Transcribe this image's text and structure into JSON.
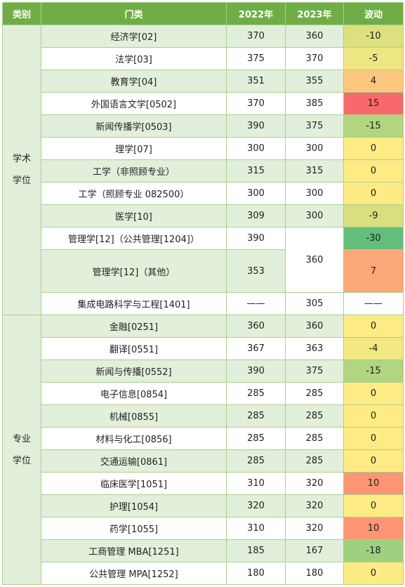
{
  "headers": {
    "category": "类别",
    "field": "门类",
    "y2022": "2022年",
    "y2023": "2023年",
    "change": "波动"
  },
  "groups": {
    "academic": [
      "学术",
      "学位"
    ],
    "professional": [
      "专业",
      "学位"
    ]
  },
  "rows": [
    {
      "field": "经济学[02]",
      "y2022": "370",
      "y2023": "360",
      "change": "-10",
      "color": "#dce07f"
    },
    {
      "field": "法学[03]",
      "y2022": "375",
      "y2023": "370",
      "change": "-5",
      "color": "#eee682"
    },
    {
      "field": "教育学[04]",
      "y2022": "351",
      "y2023": "355",
      "change": "4",
      "color": "#fdc67d"
    },
    {
      "field": "外国语言文学[0502]",
      "y2022": "370",
      "y2023": "385",
      "change": "15",
      "color": "#f8696b"
    },
    {
      "field": "新闻传播学[0503]",
      "y2022": "390",
      "y2023": "375",
      "change": "-15",
      "color": "#b1d580"
    },
    {
      "field": "理学[07]",
      "y2022": "300",
      "y2023": "300",
      "change": "0",
      "color": "#ffeb84"
    },
    {
      "field": "工学（非照顾专业）",
      "y2022": "315",
      "y2023": "315",
      "change": "0",
      "color": "#ffeb84"
    },
    {
      "field": "工学（照顾专业 082500）",
      "y2022": "300",
      "y2023": "300",
      "change": "0",
      "color": "#ffeb84"
    },
    {
      "field": "医学[10]",
      "y2022": "309",
      "y2023": "300",
      "change": "-9",
      "color": "#d8df7f"
    },
    {
      "field": "管理学[12]（公共管理[1204]）",
      "y2022": "390",
      "y2023": "360",
      "change": "-30",
      "color": "#63be7b"
    },
    {
      "field": "管理学[12]（其他）",
      "y2022": "353",
      "y2023": "",
      "change": "7",
      "color": "#fca777"
    },
    {
      "field": "集成电路科学与工程[1401]",
      "y2022": "——",
      "y2023": "305",
      "change": "——",
      "color": "#ffffff"
    },
    {
      "field": "金融[0251]",
      "y2022": "360",
      "y2023": "360",
      "change": "0",
      "color": "#ffeb84"
    },
    {
      "field": "翻译[0551]",
      "y2022": "367",
      "y2023": "363",
      "change": "-4",
      "color": "#f1e783"
    },
    {
      "field": "新闻与传播[0552]",
      "y2022": "390",
      "y2023": "375",
      "change": "-15",
      "color": "#b1d580"
    },
    {
      "field": "电子信息[0854]",
      "y2022": "285",
      "y2023": "285",
      "change": "0",
      "color": "#ffeb84"
    },
    {
      "field": "机械[0855]",
      "y2022": "285",
      "y2023": "285",
      "change": "0",
      "color": "#ffeb84"
    },
    {
      "field": "材料与化工[0856]",
      "y2022": "285",
      "y2023": "285",
      "change": "0",
      "color": "#ffeb84"
    },
    {
      "field": "交通运输[0861]",
      "y2022": "285",
      "y2023": "285",
      "change": "0",
      "color": "#ffeb84"
    },
    {
      "field": "临床医学[1051]",
      "y2022": "310",
      "y2023": "320",
      "change": "10",
      "color": "#fb9574"
    },
    {
      "field": "护理[1054]",
      "y2022": "320",
      "y2023": "320",
      "change": "0",
      "color": "#ffeb84"
    },
    {
      "field": "药学[1055]",
      "y2022": "310",
      "y2023": "320",
      "change": "10",
      "color": "#fb9574"
    },
    {
      "field": "工商管理 MBA[1251]",
      "y2022": "185",
      "y2023": "167",
      "change": "-18",
      "color": "#a0d07f"
    },
    {
      "field": "公共管理 MPA[1252]",
      "y2022": "180",
      "y2023": "180",
      "change": "0",
      "color": "#ffeb84"
    }
  ]
}
